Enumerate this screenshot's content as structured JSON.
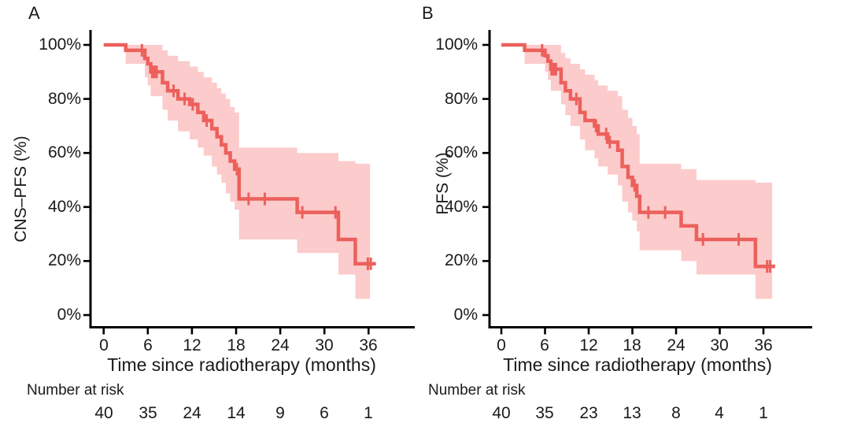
{
  "colors": {
    "km_line": "#ec605c",
    "ci_band": "#fccbcb",
    "text": "#1a1a1a",
    "axis": "#000000",
    "background": "#ffffff"
  },
  "chart_data": [
    {
      "type": "line",
      "chart_style": "kaplan-meier-step",
      "panel_label": "A",
      "ylabel": "CNS–PFS (%)",
      "xlabel": "Time since radiotherapy (months)",
      "xlim": [
        0,
        39
      ],
      "ylim": [
        0,
        100
      ],
      "grid": false,
      "legend": false,
      "x_ticks": [
        0,
        6,
        12,
        18,
        24,
        30,
        36
      ],
      "x_tick_labels": [
        "0",
        "6",
        "12",
        "18",
        "24",
        "30",
        "36"
      ],
      "y_ticks": [
        100,
        80,
        60,
        40,
        20,
        0
      ],
      "y_tick_labels": [
        "100%",
        "80%",
        "60%",
        "40%",
        "20%",
        "0%"
      ],
      "risk_label": "Number at risk",
      "number_at_risk": [
        "40",
        "35",
        "24",
        "14",
        "9",
        "6",
        "1"
      ],
      "number_at_risk_times": [
        0,
        6,
        12,
        18,
        24,
        30,
        36
      ],
      "series": [
        {
          "name": "CNS-PFS",
          "steps_time_pct": [
            [
              0,
              100
            ],
            [
              3,
              98
            ],
            [
              5.6,
              95
            ],
            [
              6,
              93
            ],
            [
              6.4,
              90
            ],
            [
              8,
              86
            ],
            [
              8.7,
              83
            ],
            [
              10.1,
              80
            ],
            [
              11.7,
              78
            ],
            [
              12.8,
              75
            ],
            [
              13.6,
              72
            ],
            [
              14.7,
              69
            ],
            [
              15.4,
              66
            ],
            [
              16,
              63
            ],
            [
              16.6,
              60
            ],
            [
              17.2,
              57
            ],
            [
              17.8,
              54
            ],
            [
              18.4,
              43
            ],
            [
              26.3,
              38
            ],
            [
              31.9,
              28
            ],
            [
              34.2,
              19
            ]
          ],
          "end_time": 37.0,
          "censor_marks_time_pct": [
            [
              5.2,
              98
            ],
            [
              6.6,
              90
            ],
            [
              6.9,
              90
            ],
            [
              7.2,
              90
            ],
            [
              9.5,
              83
            ],
            [
              11,
              80
            ],
            [
              12.1,
              78
            ],
            [
              14,
              72
            ],
            [
              18.1,
              54
            ],
            [
              19.7,
              43
            ],
            [
              21.9,
              43
            ],
            [
              27,
              38
            ],
            [
              31.5,
              38
            ],
            [
              35.9,
              19
            ],
            [
              36.3,
              19
            ]
          ],
          "ci_band_time_lo_hi": [
            [
              3,
              93,
              100
            ],
            [
              5.6,
              88,
              100
            ],
            [
              6,
              85,
              100
            ],
            [
              6.4,
              81,
              100
            ],
            [
              8,
              76,
              98
            ],
            [
              8.7,
              72,
              96
            ],
            [
              10.1,
              68,
              94
            ],
            [
              11.7,
              65,
              92
            ],
            [
              12.8,
              62,
              90
            ],
            [
              13.6,
              59,
              88
            ],
            [
              14.7,
              55,
              86
            ],
            [
              15.4,
              52,
              84
            ],
            [
              16,
              49,
              82
            ],
            [
              16.6,
              45,
              80
            ],
            [
              17.2,
              42,
              77
            ],
            [
              17.8,
              39,
              75
            ],
            [
              18.4,
              28,
              62
            ],
            [
              26.3,
              23,
              60
            ],
            [
              31.9,
              15,
              57
            ],
            [
              34.2,
              6,
              56
            ]
          ],
          "ci_end_time": 36.2
        }
      ]
    },
    {
      "type": "line",
      "chart_style": "kaplan-meier-step",
      "panel_label": "B",
      "ylabel": "PFS (%)",
      "xlabel": "Time since radiotherapy (months)",
      "xlim": [
        0,
        39
      ],
      "ylim": [
        0,
        100
      ],
      "grid": false,
      "legend": false,
      "x_ticks": [
        0,
        6,
        12,
        18,
        24,
        30,
        36
      ],
      "x_tick_labels": [
        "0",
        "6",
        "12",
        "18",
        "24",
        "30",
        "36"
      ],
      "y_ticks": [
        100,
        80,
        60,
        40,
        20,
        0
      ],
      "y_tick_labels": [
        "100%",
        "80%",
        "60%",
        "40%",
        "20%",
        "0%"
      ],
      "risk_label": "Number at risk",
      "number_at_risk": [
        "40",
        "35",
        "23",
        "13",
        "8",
        "4",
        "1"
      ],
      "number_at_risk_times": [
        0,
        6,
        12,
        18,
        24,
        30,
        36
      ],
      "series": [
        {
          "name": "PFS",
          "steps_time_pct": [
            [
              0,
              100
            ],
            [
              3.2,
              98
            ],
            [
              6,
              96
            ],
            [
              6.4,
              94
            ],
            [
              6.8,
              91
            ],
            [
              8.2,
              86
            ],
            [
              8.8,
              83
            ],
            [
              9.5,
              80
            ],
            [
              10.8,
              75
            ],
            [
              11.5,
              72
            ],
            [
              12.8,
              70
            ],
            [
              13.3,
              67
            ],
            [
              14.6,
              64
            ],
            [
              16,
              61
            ],
            [
              16.6,
              55
            ],
            [
              17.4,
              51
            ],
            [
              18,
              48
            ],
            [
              18.6,
              44
            ],
            [
              19,
              38
            ],
            [
              24.7,
              33
            ],
            [
              26.8,
              28
            ],
            [
              34.9,
              18
            ]
          ],
          "end_time": 37.6,
          "censor_marks_time_pct": [
            [
              5.6,
              98
            ],
            [
              6.9,
              91
            ],
            [
              7.2,
              91
            ],
            [
              7.5,
              91
            ],
            [
              10.3,
              80
            ],
            [
              13,
              70
            ],
            [
              14.4,
              67
            ],
            [
              14.9,
              64
            ],
            [
              18.3,
              48
            ],
            [
              20.2,
              38
            ],
            [
              22.5,
              38
            ],
            [
              27.7,
              28
            ],
            [
              32.6,
              28
            ],
            [
              36.5,
              18
            ],
            [
              36.9,
              18
            ]
          ],
          "ci_band_time_lo_hi": [
            [
              3.2,
              93,
              100
            ],
            [
              6,
              90,
              100
            ],
            [
              6.4,
              87,
              100
            ],
            [
              6.8,
              83,
              100
            ],
            [
              8.2,
              78,
              97
            ],
            [
              8.8,
              74,
              95
            ],
            [
              9.5,
              70,
              93
            ],
            [
              10.8,
              65,
              91
            ],
            [
              11.5,
              61,
              89
            ],
            [
              12.8,
              58,
              87
            ],
            [
              13.3,
              55,
              85
            ],
            [
              14.6,
              52,
              83
            ],
            [
              16,
              48,
              81
            ],
            [
              16.6,
              42,
              76
            ],
            [
              17.4,
              38,
              73
            ],
            [
              18,
              35,
              70
            ],
            [
              18.6,
              31,
              67
            ],
            [
              19,
              24,
              56
            ],
            [
              24.7,
              20,
              54
            ],
            [
              26.8,
              15,
              50
            ],
            [
              34.9,
              6,
              49
            ]
          ],
          "ci_end_time": 37.2
        }
      ]
    }
  ]
}
